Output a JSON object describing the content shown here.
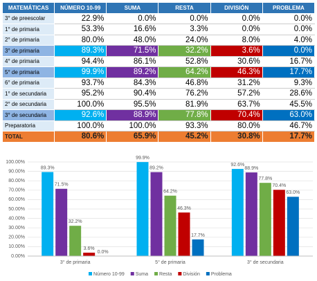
{
  "table": {
    "header": [
      "MATEMÁTICAS",
      "NÚMERO 10-99",
      "SUMA",
      "RESTA",
      "DIVISIÓN",
      "PROBLEMA"
    ],
    "rows": [
      [
        "3° de preescolar",
        "22.9%",
        "0.0%",
        "0.0%",
        "0.0%",
        "0.0%"
      ],
      [
        "1° de primaria",
        "53.3%",
        "16.6%",
        "3.3%",
        "0.0%",
        "0.0%"
      ],
      [
        "2° de primaria",
        "80.0%",
        "48.0%",
        "24.0%",
        "8.0%",
        "4.0%"
      ],
      [
        "3° de primaria",
        "89.3%",
        "71.5%",
        "32.2%",
        "3.6%",
        "0.0%"
      ],
      [
        "4° de primaria",
        "94.4%",
        "86.1%",
        "52.8%",
        "30.6%",
        "16.7%"
      ],
      [
        "5° de primaria",
        "99.9%",
        "89.2%",
        "64.2%",
        "46.3%",
        "17.7%"
      ],
      [
        "6° de primaria",
        "93.7%",
        "84.3%",
        "46.8%",
        "31.2%",
        "9.3%"
      ],
      [
        "1° de secundaria",
        "95.2%",
        "90.4%",
        "76.2%",
        "57.2%",
        "28.6%"
      ],
      [
        "2° de secundaria",
        "100.0%",
        "95.5%",
        "81.9%",
        "63.7%",
        "45.5%"
      ],
      [
        "3° de secundaria",
        "92.6%",
        "88.9%",
        "77.8%",
        "70.4%",
        "63.0%"
      ],
      [
        "Preparatoria",
        "100.0%",
        "100.0%",
        "93.3%",
        "80.0%",
        "46.7%"
      ]
    ],
    "total": [
      "TOTAL",
      "80.6%",
      "65.9%",
      "45.2%",
      "30.8%",
      "17.7%"
    ]
  },
  "chart_data": {
    "type": "bar",
    "categories": [
      "3° de primaria",
      "5° de primaria",
      "3° de secundaria"
    ],
    "series": [
      {
        "name": "Número 10-99",
        "color": "#00b0f0",
        "values": [
          89.3,
          99.9,
          92.6
        ],
        "value_labels": [
          "89.3%",
          "99.9%",
          "92.6%"
        ]
      },
      {
        "name": "Suma",
        "color": "#7030a0",
        "values": [
          71.5,
          89.2,
          88.9
        ],
        "value_labels": [
          "71.5%",
          "89.2%",
          "88.9%"
        ]
      },
      {
        "name": "Resta",
        "color": "#70ad47",
        "values": [
          32.2,
          64.2,
          77.8
        ],
        "value_labels": [
          "32.2%",
          "64.2%",
          "77.8%"
        ]
      },
      {
        "name": "División",
        "color": "#c00000",
        "values": [
          3.6,
          46.3,
          70.4
        ],
        "value_labels": [
          "3.6%",
          "46.3%",
          "70.4%"
        ]
      },
      {
        "name": "Problema",
        "color": "#0070c0",
        "values": [
          0.0,
          17.7,
          63.0
        ],
        "value_labels": [
          "0.0%",
          "17.7%",
          "63.0%"
        ]
      }
    ],
    "ylim": [
      0,
      100
    ],
    "yticks": [
      {
        "value": 0,
        "label": "0.00%"
      },
      {
        "value": 10,
        "label": "10.00%"
      },
      {
        "value": 20,
        "label": "20.00%"
      },
      {
        "value": 30,
        "label": "30.00%"
      },
      {
        "value": 40,
        "label": "40.00%"
      },
      {
        "value": 50,
        "label": "50.00%"
      },
      {
        "value": 60,
        "label": "60.00%"
      },
      {
        "value": 70,
        "label": "70.00%"
      },
      {
        "value": 80,
        "label": "80.00%"
      },
      {
        "value": 90,
        "label": "90.00%"
      },
      {
        "value": 100,
        "label": "100.00%"
      }
    ],
    "grid": true,
    "legend": "bottom"
  }
}
